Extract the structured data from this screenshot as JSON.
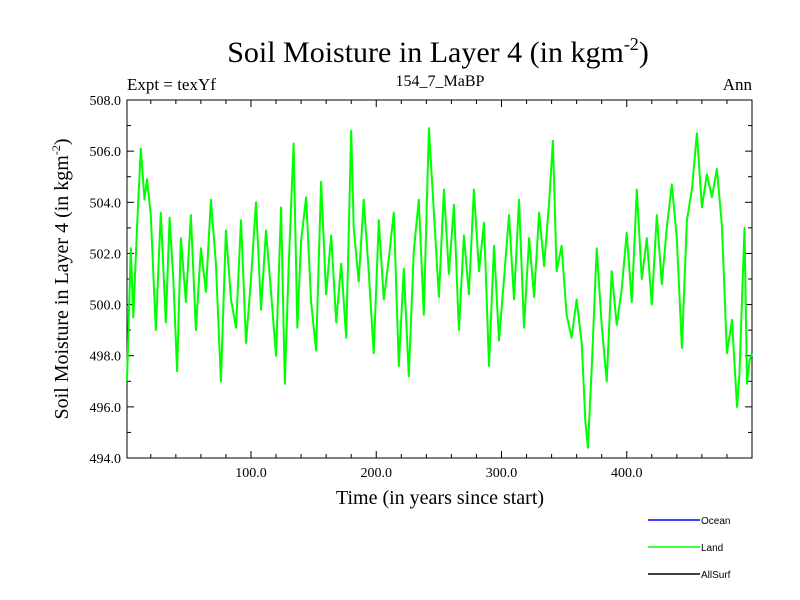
{
  "header": {
    "title_main": "Soil Moisture in Layer 4 (in kgm",
    "title_sup": "-2",
    "title_close": ")",
    "experiment": "Expt = texYf",
    "run_id": "154_7_MaBP",
    "season": "Ann"
  },
  "axes": {
    "xlabel": "Time (in years since start)",
    "ylabel_main": "Soil Moisture in Layer 4 (in kgm",
    "ylabel_sup": "-2",
    "ylabel_close": ")"
  },
  "legend": {
    "items": [
      {
        "label": "Ocean",
        "color": "#0000ff"
      },
      {
        "label": "Land",
        "color": "#00ff00"
      },
      {
        "label": "AllSurf",
        "color": "#000000"
      }
    ]
  },
  "chart_data": {
    "type": "line",
    "xlim": [
      1,
      500
    ],
    "ylim": [
      494.0,
      508.0
    ],
    "x_ticks": [
      100,
      200,
      300,
      400
    ],
    "x_tick_labels": [
      "100.0",
      "200.0",
      "300.0",
      "400.0"
    ],
    "y_ticks": [
      494,
      496,
      498,
      500,
      502,
      504,
      506,
      508
    ],
    "y_tick_labels": [
      "494.0",
      "496.0",
      "498.0",
      "500.0",
      "502.0",
      "504.0",
      "506.0",
      "508.0"
    ],
    "grid": false,
    "legend_position": "bottom-right",
    "series": [
      {
        "name": "Land",
        "color": "#00ff00",
        "x": [
          1,
          4,
          6,
          9,
          12,
          15,
          17,
          20,
          24,
          28,
          32,
          35,
          38,
          41,
          44,
          48,
          52,
          56,
          60,
          64,
          68,
          72,
          76,
          80,
          84,
          88,
          92,
          96,
          100,
          104,
          108,
          112,
          116,
          120,
          124,
          127,
          130,
          134,
          137,
          140,
          144,
          148,
          152,
          156,
          160,
          164,
          168,
          172,
          176,
          180,
          182,
          186,
          190,
          194,
          198,
          202,
          206,
          210,
          214,
          218,
          222,
          226,
          230,
          234,
          238,
          242,
          246,
          250,
          254,
          258,
          262,
          266,
          270,
          274,
          278,
          282,
          286,
          290,
          294,
          298,
          302,
          306,
          310,
          314,
          318,
          322,
          326,
          330,
          334,
          338,
          341,
          344,
          348,
          352,
          356,
          360,
          364,
          367,
          369,
          372,
          376,
          380,
          384,
          388,
          392,
          396,
          400,
          404,
          408,
          412,
          416,
          420,
          424,
          428,
          432,
          436,
          440,
          444,
          448,
          452,
          456,
          460,
          464,
          468,
          472,
          476,
          480,
          484,
          488,
          490,
          492,
          494,
          496,
          498,
          500
        ],
        "values": [
          497.0,
          502.2,
          499.5,
          503.0,
          506.1,
          504.1,
          504.9,
          503.5,
          499.0,
          503.6,
          499.3,
          503.4,
          501.0,
          497.4,
          502.6,
          500.1,
          503.5,
          499.0,
          502.2,
          500.5,
          504.1,
          501.6,
          497.0,
          502.9,
          500.2,
          499.1,
          503.3,
          498.5,
          501.0,
          504.0,
          499.8,
          502.9,
          500.5,
          498.0,
          503.8,
          496.9,
          501.4,
          506.3,
          499.1,
          502.5,
          504.2,
          500.1,
          498.2,
          504.8,
          500.4,
          502.7,
          499.3,
          501.6,
          498.7,
          506.8,
          503.0,
          500.9,
          504.1,
          501.3,
          498.1,
          503.3,
          500.2,
          501.8,
          503.6,
          497.6,
          501.4,
          497.2,
          502.1,
          504.1,
          499.6,
          506.9,
          503.6,
          500.3,
          504.5,
          501.2,
          503.9,
          499.0,
          502.7,
          500.4,
          504.5,
          501.3,
          503.2,
          497.6,
          502.3,
          498.6,
          501.0,
          503.5,
          500.2,
          504.1,
          499.1,
          502.6,
          500.3,
          503.6,
          501.5,
          504.0,
          506.4,
          501.3,
          502.3,
          499.6,
          498.7,
          500.2,
          498.5,
          495.4,
          494.4,
          497.5,
          502.2,
          499.2,
          497.0,
          501.3,
          499.2,
          500.6,
          502.8,
          500.1,
          504.5,
          501.0,
          502.6,
          500.0,
          503.5,
          500.8,
          503.0,
          504.7,
          502.6,
          498.3,
          503.3,
          504.5,
          506.7,
          503.8,
          505.1,
          504.2,
          505.3,
          503.1,
          498.1,
          499.4,
          496.0,
          497.3,
          500.2,
          503.0,
          496.9,
          497.8,
          498.1
        ]
      }
    ]
  }
}
